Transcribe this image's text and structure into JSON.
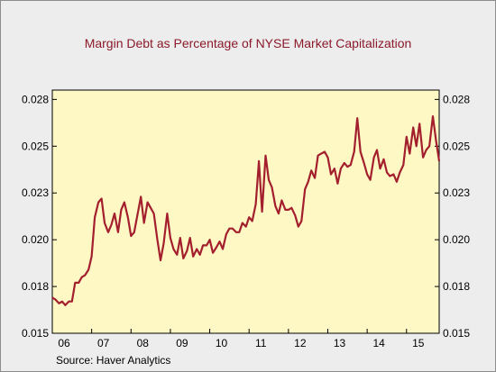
{
  "chart_data": {
    "type": "line",
    "title": "Margin Debt as Percentage of NYSE Market Capitalization",
    "source": "Source:  Haver Analytics",
    "ylim": [
      0.015,
      0.028
    ],
    "yticks": [
      0.015,
      0.0175,
      0.02,
      0.0225,
      0.025,
      0.0275
    ],
    "ytick_labels": [
      "0.015",
      "0.018",
      "0.020",
      "0.023",
      "0.025",
      "0.028"
    ],
    "xlim": [
      2006.0,
      2015.83
    ],
    "xtick_labels": [
      "06",
      "07",
      "08",
      "09",
      "10",
      "11",
      "12",
      "13",
      "14",
      "15"
    ],
    "xtick_positions": [
      2006,
      2007,
      2008,
      2009,
      2010,
      2011,
      2012,
      2013,
      2014,
      2015
    ],
    "grid": false,
    "line_color": "#a31f2e",
    "plot_bg": "#fdf8c4",
    "series": [
      {
        "values": [
          [
            2005.92,
            0.0169
          ],
          [
            2006.0,
            0.0169
          ],
          [
            2006.08,
            0.0168
          ],
          [
            2006.17,
            0.0166
          ],
          [
            2006.25,
            0.0167
          ],
          [
            2006.33,
            0.0165
          ],
          [
            2006.42,
            0.0167
          ],
          [
            2006.5,
            0.0167
          ],
          [
            2006.58,
            0.0177
          ],
          [
            2006.67,
            0.0177
          ],
          [
            2006.75,
            0.018
          ],
          [
            2006.83,
            0.0181
          ],
          [
            2006.92,
            0.0184
          ],
          [
            2007.0,
            0.0191
          ],
          [
            2007.08,
            0.0212
          ],
          [
            2007.17,
            0.022
          ],
          [
            2007.25,
            0.0222
          ],
          [
            2007.33,
            0.0209
          ],
          [
            2007.42,
            0.0204
          ],
          [
            2007.5,
            0.0208
          ],
          [
            2007.58,
            0.0214
          ],
          [
            2007.67,
            0.0204
          ],
          [
            2007.75,
            0.0216
          ],
          [
            2007.83,
            0.022
          ],
          [
            2007.92,
            0.0212
          ],
          [
            2008.0,
            0.0202
          ],
          [
            2008.08,
            0.0204
          ],
          [
            2008.17,
            0.0214
          ],
          [
            2008.25,
            0.0223
          ],
          [
            2008.33,
            0.0209
          ],
          [
            2008.42,
            0.022
          ],
          [
            2008.5,
            0.0217
          ],
          [
            2008.58,
            0.0214
          ],
          [
            2008.67,
            0.02
          ],
          [
            2008.75,
            0.0189
          ],
          [
            2008.83,
            0.0198
          ],
          [
            2008.92,
            0.0214
          ],
          [
            2009.0,
            0.0201
          ],
          [
            2009.08,
            0.0195
          ],
          [
            2009.17,
            0.0192
          ],
          [
            2009.25,
            0.0201
          ],
          [
            2009.33,
            0.019
          ],
          [
            2009.42,
            0.0194
          ],
          [
            2009.5,
            0.0201
          ],
          [
            2009.58,
            0.0191
          ],
          [
            2009.67,
            0.0195
          ],
          [
            2009.75,
            0.0192
          ],
          [
            2009.83,
            0.0197
          ],
          [
            2009.92,
            0.0197
          ],
          [
            2010.0,
            0.02
          ],
          [
            2010.08,
            0.0193
          ],
          [
            2010.17,
            0.0196
          ],
          [
            2010.25,
            0.0199
          ],
          [
            2010.33,
            0.0195
          ],
          [
            2010.42,
            0.0203
          ],
          [
            2010.5,
            0.0206
          ],
          [
            2010.58,
            0.0206
          ],
          [
            2010.67,
            0.0204
          ],
          [
            2010.75,
            0.0204
          ],
          [
            2010.83,
            0.0209
          ],
          [
            2010.92,
            0.0207
          ],
          [
            2011.0,
            0.0212
          ],
          [
            2011.08,
            0.021
          ],
          [
            2011.17,
            0.0219
          ],
          [
            2011.25,
            0.0242
          ],
          [
            2011.33,
            0.0215
          ],
          [
            2011.42,
            0.0245
          ],
          [
            2011.5,
            0.0232
          ],
          [
            2011.58,
            0.0228
          ],
          [
            2011.67,
            0.0218
          ],
          [
            2011.75,
            0.0214
          ],
          [
            2011.83,
            0.0221
          ],
          [
            2011.92,
            0.0216
          ],
          [
            2012.0,
            0.0216
          ],
          [
            2012.08,
            0.0217
          ],
          [
            2012.17,
            0.0213
          ],
          [
            2012.25,
            0.0207
          ],
          [
            2012.33,
            0.021
          ],
          [
            2012.42,
            0.0227
          ],
          [
            2012.5,
            0.0231
          ],
          [
            2012.58,
            0.0237
          ],
          [
            2012.67,
            0.0233
          ],
          [
            2012.75,
            0.0245
          ],
          [
            2012.83,
            0.0246
          ],
          [
            2012.92,
            0.0247
          ],
          [
            2013.0,
            0.0244
          ],
          [
            2013.08,
            0.0235
          ],
          [
            2013.17,
            0.0238
          ],
          [
            2013.25,
            0.023
          ],
          [
            2013.33,
            0.0238
          ],
          [
            2013.42,
            0.0241
          ],
          [
            2013.5,
            0.0239
          ],
          [
            2013.58,
            0.024
          ],
          [
            2013.67,
            0.0247
          ],
          [
            2013.75,
            0.0265
          ],
          [
            2013.83,
            0.0247
          ],
          [
            2013.92,
            0.0241
          ],
          [
            2014.0,
            0.0235
          ],
          [
            2014.08,
            0.0232
          ],
          [
            2014.17,
            0.0244
          ],
          [
            2014.25,
            0.0248
          ],
          [
            2014.33,
            0.0238
          ],
          [
            2014.42,
            0.0243
          ],
          [
            2014.5,
            0.0236
          ],
          [
            2014.58,
            0.0234
          ],
          [
            2014.67,
            0.0235
          ],
          [
            2014.75,
            0.0231
          ],
          [
            2014.83,
            0.0236
          ],
          [
            2014.92,
            0.024
          ],
          [
            2015.0,
            0.0255
          ],
          [
            2015.08,
            0.0246
          ],
          [
            2015.17,
            0.026
          ],
          [
            2015.25,
            0.025
          ],
          [
            2015.33,
            0.0262
          ],
          [
            2015.42,
            0.0244
          ],
          [
            2015.5,
            0.0248
          ],
          [
            2015.58,
            0.025
          ],
          [
            2015.67,
            0.0266
          ],
          [
            2015.75,
            0.0253
          ],
          [
            2015.83,
            0.0242
          ]
        ]
      }
    ]
  }
}
